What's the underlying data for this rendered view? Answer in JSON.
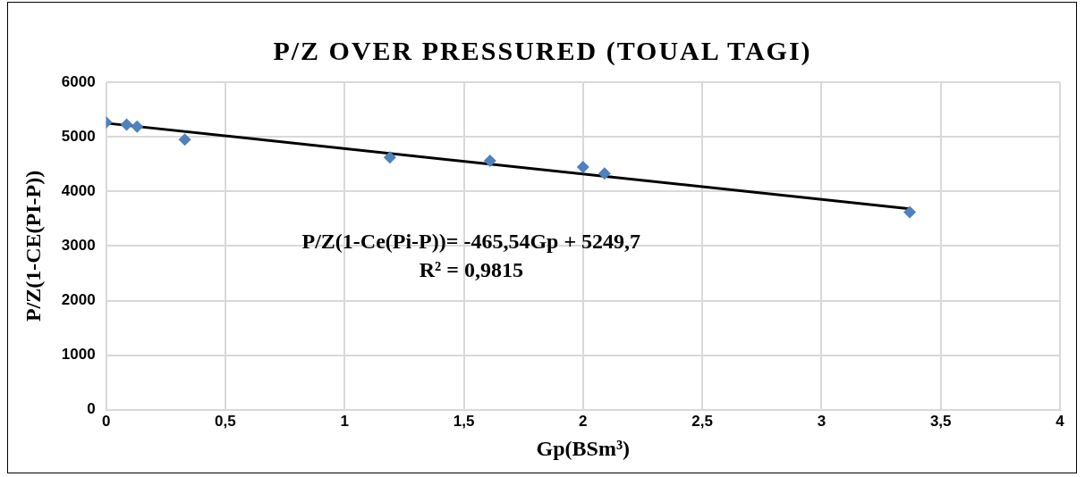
{
  "chart_data": {
    "type": "scatter",
    "title": "P/Z OVER PRESSURED (TOUAL TAGI)",
    "xlabel": "Gp(BSm³)",
    "ylabel": "P/Z(1-CE(PI-P))",
    "x": [
      0,
      0.086,
      0.13,
      0.33,
      1.19,
      1.61,
      2.0,
      2.09,
      3.37
    ],
    "series": [
      {
        "color": "#4f81bd",
        "values": [
          5263,
          5224,
          5185,
          4951,
          4620,
          4561,
          4444,
          4327,
          3620
        ],
        "marker": "diamond"
      },
      {
        "type": "line",
        "color": "#000000",
        "x": [
          0,
          3.37
        ],
        "values": [
          5249.7,
          3681
        ],
        "marker": "none"
      }
    ],
    "xlim": [
      0,
      4
    ],
    "xticks": [
      0,
      {
        "value": 0.5,
        "label": "0,5"
      },
      1,
      {
        "value": 1.5,
        "label": "1,5"
      },
      2,
      {
        "value": 2.5,
        "label": "2,5"
      },
      3,
      {
        "value": 3.5,
        "label": "3,5"
      },
      4
    ],
    "ylim": [
      0,
      6000
    ],
    "yticks": [
      0,
      1000,
      2000,
      3000,
      4000,
      5000,
      6000
    ],
    "grid": true,
    "legend": false,
    "annotations": [
      "P/Z(1-Ce(Pi-P))= -465,54Gp + 5249,7",
      "R² = 0,9815"
    ]
  }
}
